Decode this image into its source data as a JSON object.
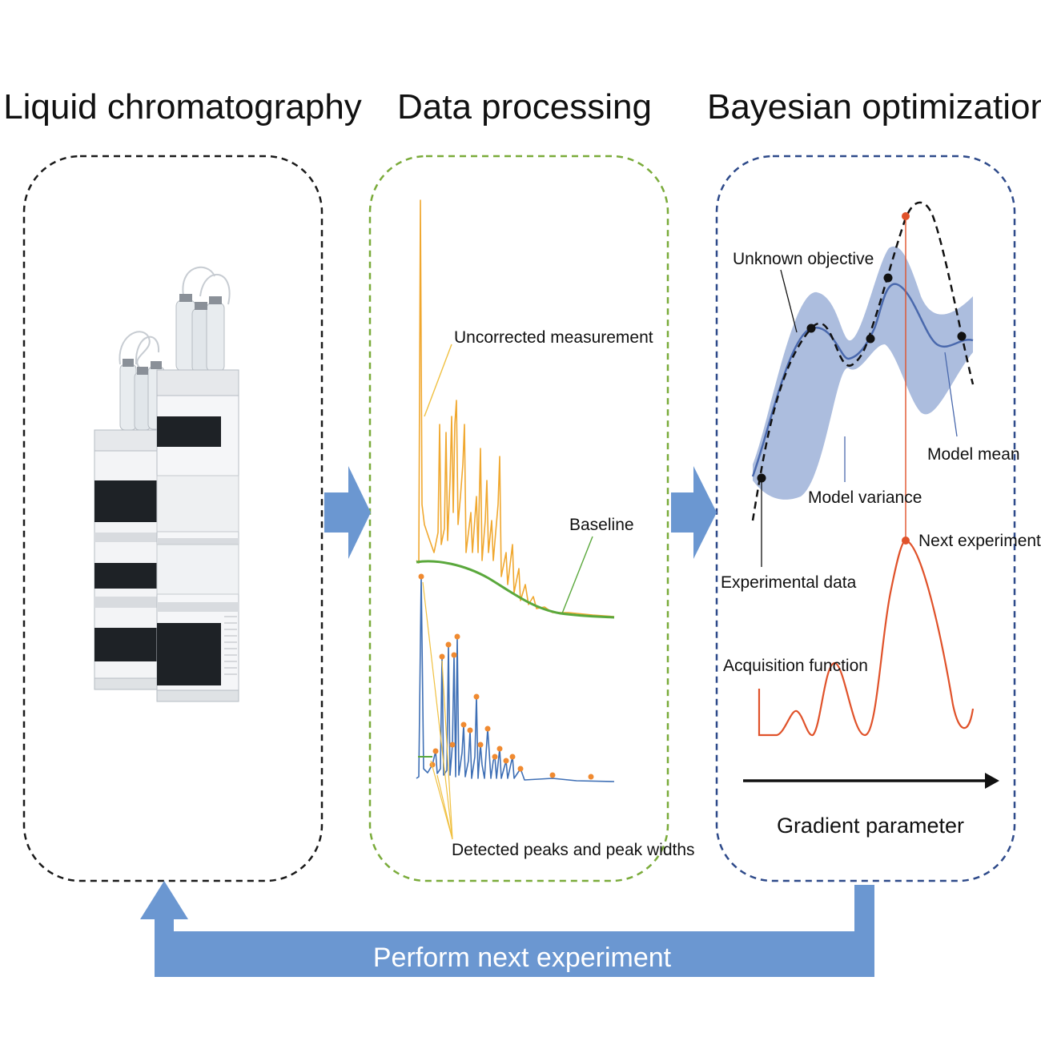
{
  "titles": {
    "lc": "Liquid chromatography",
    "dp": "Data processing",
    "bo": "Bayesian optimization"
  },
  "data_processing": {
    "uncorrected": "Uncorrected measurement",
    "baseline": "Baseline",
    "peaks": "Detected peaks and peak widths"
  },
  "bayesian": {
    "unknown_objective": "Unknown objective",
    "model_variance": "Model variance",
    "model_mean": "Model mean",
    "next_experiment": "Next experiment",
    "experimental_data": "Experimental data",
    "acquisition_function": "Acquisition function",
    "gradient_parameter": "Gradient parameter"
  },
  "loop": {
    "label": "Perform next experiment"
  },
  "colors": {
    "lc_border": "#1a1a1a",
    "dp_border": "#7aab3a",
    "bo_border": "#2e4a8a",
    "arrow": "#6b97d1",
    "chrom": "#f0a830",
    "baseline": "#5aa83c",
    "corrected": "#3e6fb5",
    "peak_marker": "#f08a30",
    "variance": "#9eb1d8",
    "mean": "#4a69ad",
    "acquisition": "#e0522a"
  }
}
